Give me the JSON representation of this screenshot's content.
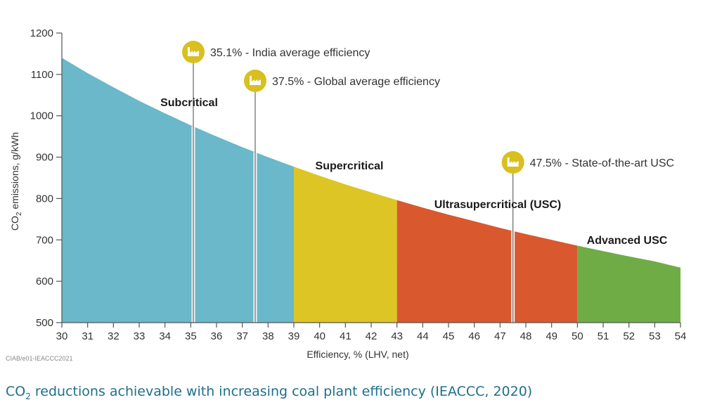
{
  "chart_data": {
    "type": "area",
    "xlabel": "Efficiency, % (LHV, net)",
    "ylabel_prefix": "CO",
    "ylabel_sub": "2",
    "ylabel_suffix": " emissions, g/kWh",
    "xlim": [
      30,
      54
    ],
    "ylim": [
      500,
      1200
    ],
    "x_ticks": [
      30,
      31,
      32,
      33,
      34,
      35,
      36,
      37,
      38,
      39,
      40,
      41,
      42,
      43,
      44,
      45,
      46,
      47,
      48,
      49,
      50,
      51,
      52,
      53,
      54
    ],
    "y_ticks": [
      500,
      600,
      700,
      800,
      900,
      1000,
      1100,
      1200
    ],
    "curve": {
      "x": [
        30,
        31,
        32,
        33,
        34,
        35,
        36,
        37,
        38,
        39,
        40,
        41,
        42,
        43,
        44,
        45,
        46,
        47,
        48,
        49,
        50,
        51,
        52,
        53,
        54
      ],
      "y": [
        1140,
        1103,
        1069,
        1036,
        1006,
        977,
        950,
        924,
        900,
        877,
        855,
        834,
        815,
        796,
        778,
        761,
        745,
        729,
        714,
        700,
        686,
        673,
        660,
        648,
        633
      ]
    },
    "regions": [
      {
        "name": "Subcritical",
        "x_start": 30,
        "x_end": 39,
        "color": "#6ab8c9"
      },
      {
        "name": "Supercritical",
        "x_start": 39,
        "x_end": 43,
        "color": "#dcc524"
      },
      {
        "name": "Ultrasupercritical (USC)",
        "x_start": 43,
        "x_end": 50,
        "color": "#d9582e"
      },
      {
        "name": "Advanced USC",
        "x_start": 50,
        "x_end": 54,
        "color": "#6fac46"
      }
    ],
    "annotations": [
      {
        "x": 35.1,
        "text": "35.1% - India average efficiency"
      },
      {
        "x": 37.5,
        "text": "37.5% - Global average efficiency"
      },
      {
        "x": 47.5,
        "text": "47.5% - State-of-the-art USC"
      }
    ],
    "annotation_color": "#d9bf1f",
    "grid": false
  },
  "credit": "CIAB/e01-IEACCC2021",
  "caption": {
    "prefix": "CO",
    "sub": "2",
    "suffix": " reductions achievable with increasing coal plant efficiency (IEACCC, 2020)"
  }
}
